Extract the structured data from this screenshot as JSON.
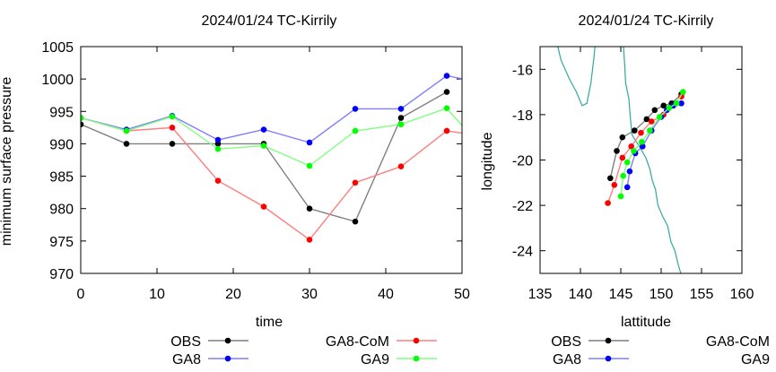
{
  "chart_data": [
    {
      "type": "line",
      "title": "2024/01/24 TC-Kirrily",
      "xlabel": "time",
      "ylabel": "minimum surface pressure",
      "xlim": [
        0,
        50
      ],
      "ylim": [
        970,
        1005
      ],
      "xticks": [
        0,
        10,
        20,
        30,
        40,
        50
      ],
      "yticks": [
        970,
        975,
        980,
        985,
        990,
        995,
        1000,
        1005
      ],
      "legend": "bottom",
      "series": [
        {
          "name": "OBS",
          "color": "#000000",
          "line_color": "#7f7f7f",
          "x": [
            0,
            6,
            12,
            18,
            24,
            30,
            36,
            42,
            48
          ],
          "y": [
            993,
            990,
            990,
            990,
            990,
            980,
            978,
            994,
            998
          ]
        },
        {
          "name": "GA8-CoM",
          "color": "#ff0000",
          "line_color": "#ff7f7f",
          "x": [
            0,
            6,
            12,
            18,
            24,
            30,
            36,
            42,
            48,
            51
          ],
          "y": [
            994,
            992,
            992.5,
            984.3,
            980.3,
            975.2,
            984,
            986.5,
            992,
            991.5
          ]
        },
        {
          "name": "GA8",
          "color": "#0000ff",
          "line_color": "#7f7fff",
          "x": [
            0,
            6,
            12,
            18,
            24,
            30,
            36,
            42,
            48,
            51
          ],
          "y": [
            994,
            992.2,
            994.3,
            990.6,
            992.2,
            990.2,
            995.4,
            995.4,
            1000.5,
            999.8
          ]
        },
        {
          "name": "GA9",
          "color": "#00ff00",
          "line_color": "#7fff7f",
          "x": [
            0,
            6,
            12,
            18,
            24,
            30,
            36,
            42,
            48,
            51
          ],
          "y": [
            994,
            992,
            994.2,
            989.2,
            989.7,
            986.6,
            992,
            993,
            995.5,
            991.5
          ]
        }
      ]
    },
    {
      "type": "line",
      "title": "2024/01/24 TC-Kirrily",
      "xlabel": "lattitude",
      "ylabel": "longitude",
      "xlim": [
        135,
        160
      ],
      "ylim": [
        -25,
        -15
      ],
      "xticks": [
        135,
        140,
        145,
        150,
        155,
        160
      ],
      "yticks": [
        -24,
        -22,
        -20,
        -18,
        -16
      ],
      "legend": "bottom",
      "series": [
        {
          "name": "OBS",
          "color": "#000000",
          "line_color": "#7f7f7f",
          "x": [
            152.5,
            151.3,
            150.3,
            149.2,
            148.2,
            146.7,
            145.2,
            144.5,
            143.7
          ],
          "y": [
            -17.1,
            -17.5,
            -17.6,
            -17.8,
            -18.2,
            -18.7,
            -19,
            -19.6,
            -20.8
          ]
        },
        {
          "name": "GA8-CoM",
          "color": "#ff0000",
          "line_color": "#ff7f7f",
          "x": [
            152.5,
            151.5,
            150.3,
            148.8,
            147.5,
            146.3,
            145.2,
            144.2,
            143.4
          ],
          "y": [
            -17.2,
            -17.6,
            -18,
            -18.3,
            -18.8,
            -19.4,
            -19.9,
            -21.1,
            -21.9
          ]
        },
        {
          "name": "GA8",
          "color": "#0000ff",
          "line_color": "#7f7fff",
          "x": [
            152.5,
            151.5,
            150.7,
            150,
            148.8,
            147.7,
            146.8,
            146.1,
            145.8
          ],
          "y": [
            -17.5,
            -17.6,
            -17.8,
            -18.1,
            -18.7,
            -19.4,
            -19.7,
            -20.5,
            -21.2
          ]
        },
        {
          "name": "GA9",
          "color": "#00ff00",
          "line_color": "#7fff7f",
          "x": [
            152.7,
            151.9,
            151,
            149.8,
            148.6,
            147.6,
            146.6,
            145.8,
            145.3,
            145
          ],
          "y": [
            -17,
            -17.5,
            -17.7,
            -18.1,
            -18.7,
            -19.2,
            -19.6,
            -20.1,
            -20.7,
            -21.6
          ]
        }
      ],
      "map_features": "coastline (green)"
    }
  ],
  "colors": {
    "coastline": "#2fa99a"
  }
}
